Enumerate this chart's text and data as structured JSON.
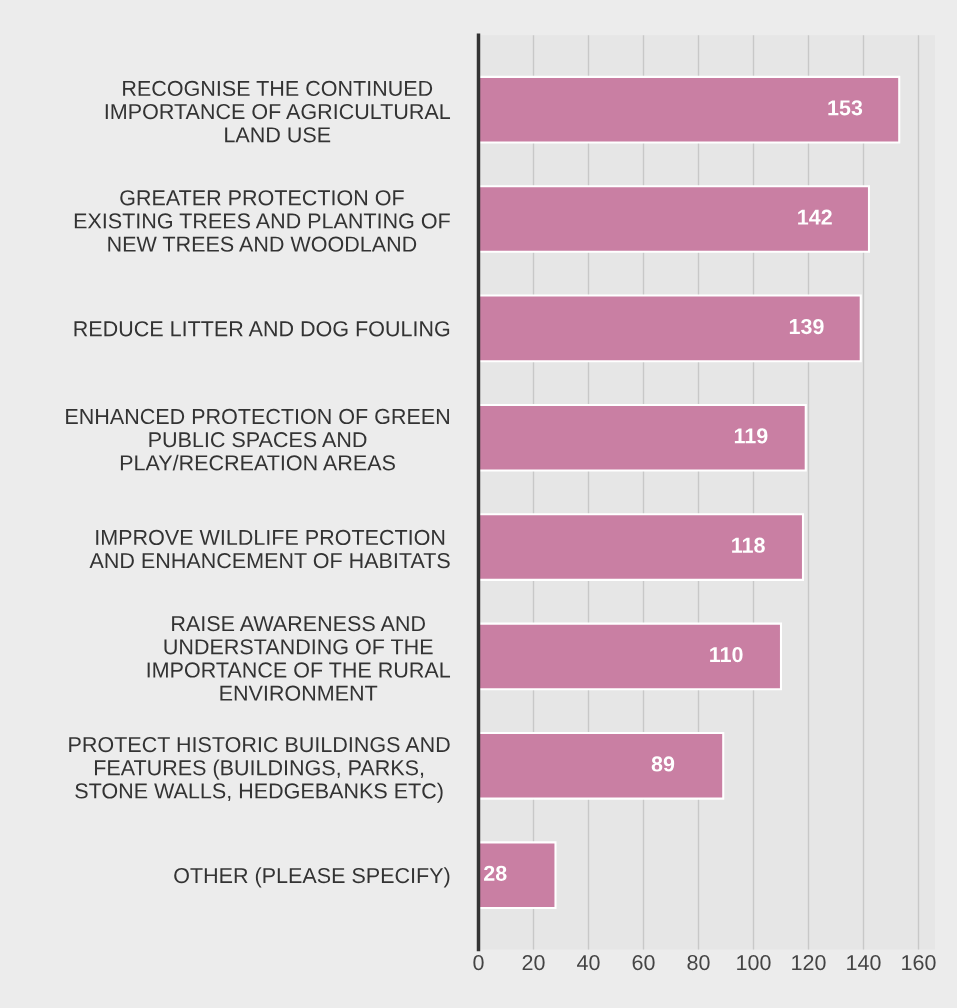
{
  "chart_data": {
    "type": "bar",
    "orientation": "horizontal",
    "categories": [
      "RECOGNISE THE CONTINUED\nIMPORTANCE OF AGRICULTURAL\nLAND USE",
      "GREATER PROTECTION OF\nEXISTING TREES AND PLANTING OF\nNEW TREES AND WOODLAND",
      "REDUCE LITTER AND DOG FOULING",
      "ENHANCED PROTECTION OF GREEN\nPUBLIC SPACES AND\nPLAY/RECREATION AREAS",
      "IMPROVE WILDLIFE PROTECTION\nAND ENHANCEMENT OF HABITATS",
      "RAISE AWARENESS AND\nUNDERSTANDING OF THE\nIMPORTANCE OF THE RURAL\nENVIRONMENT",
      "PROTECT HISTORIC BUILDINGS AND\nFEATURES (BUILDINGS, PARKS,\nSTONE WALLS, HEDGEBANKS ETC)",
      "OTHER (PLEASE SPECIFY)"
    ],
    "values": [
      153,
      142,
      139,
      119,
      118,
      110,
      89,
      28
    ],
    "color": "#c97fa3",
    "xlim": [
      0,
      166
    ],
    "xticks": [
      0,
      20,
      40,
      60,
      80,
      100,
      120,
      140,
      160
    ],
    "grid": "x",
    "data_labels": true
  }
}
